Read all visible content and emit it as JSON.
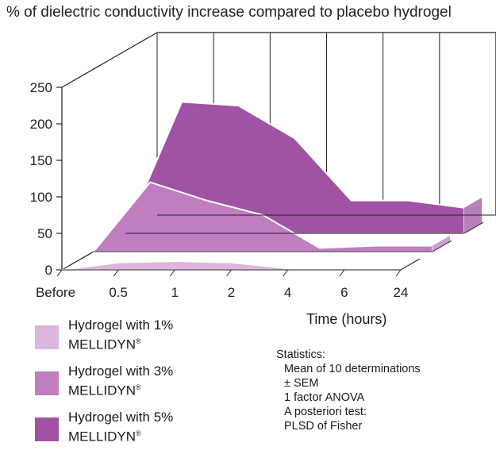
{
  "chart_data": {
    "type": "area",
    "style": "3d",
    "title": "% of dielectric conductivity increase compared to placebo hydrogel",
    "xlabel": "Time (hours)",
    "ylabel": "",
    "categories": [
      "Before",
      "0.5",
      "1",
      "2",
      "4",
      "6",
      "24"
    ],
    "ylim": [
      0,
      250
    ],
    "yticks": [
      0,
      50,
      100,
      150,
      200,
      250
    ],
    "series": [
      {
        "name": "Hydrogel with 1% MELLIDYN®",
        "values": [
          0,
          10,
          12,
          10,
          2,
          0,
          2
        ],
        "color": "#dcb6dc"
      },
      {
        "name": "Hydrogel with 3% MELLIDYN®",
        "values": [
          0,
          95,
          70,
          50,
          5,
          8,
          8
        ],
        "color": "#c07ec0"
      },
      {
        "name": "Hydrogel with 5% MELLIDYN®",
        "values": [
          0,
          180,
          175,
          130,
          45,
          45,
          35
        ],
        "color": "#a052a4"
      }
    ],
    "grid": true,
    "legend_position": "bottom-left"
  },
  "legend": {
    "items": [
      {
        "prefix": "Hydrogel with 1%",
        "brand": "MELLIDYN",
        "mark": "®",
        "color": "#dcb6dc"
      },
      {
        "prefix": "Hydrogel with 3%",
        "brand": "MELLIDYN",
        "mark": "®",
        "color": "#c07ec0"
      },
      {
        "prefix": "Hydrogel with 5%",
        "brand": "MELLIDYN",
        "mark": "®",
        "color": "#a052a4"
      }
    ]
  },
  "stats": {
    "heading": "Statistics:",
    "lines": [
      "Mean of 10 determinations",
      "± SEM",
      "1 factor ANOVA",
      "A posteriori test:",
      "PLSD of Fisher"
    ]
  }
}
